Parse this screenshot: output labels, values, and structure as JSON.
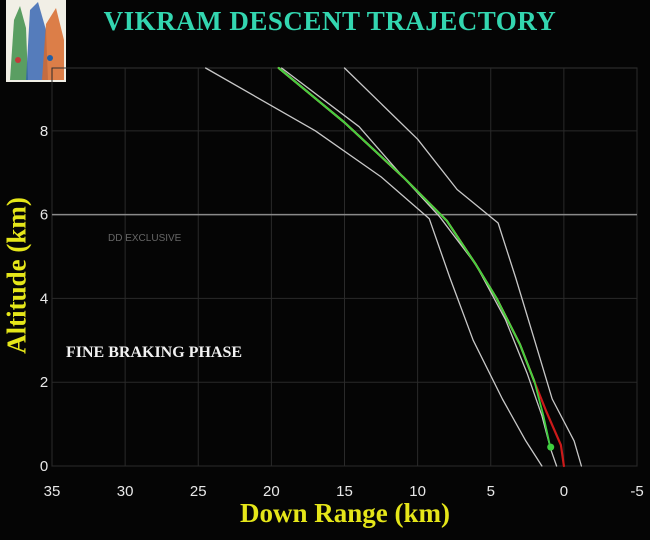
{
  "chart_data": {
    "type": "line",
    "title": "VIKRAM DESCENT TRAJECTORY",
    "xlabel": "Down Range (km)",
    "ylabel": "Altitude (km)",
    "annotation": "FINE BRAKING PHASE",
    "watermark": "DD EXCLUSIVE",
    "xlim": [
      35,
      -5
    ],
    "ylim": [
      0,
      9.5
    ],
    "xticks": [
      35,
      30,
      25,
      20,
      15,
      10,
      5,
      0,
      -5
    ],
    "yticks": [
      0,
      2,
      4,
      6,
      8
    ],
    "grid": true,
    "reference_line_y": 6,
    "colors": {
      "grid": "#2a2a2a",
      "reference": "#8a8a8a",
      "bounds": "#c8c8c8",
      "planned": "#e0c060",
      "actual": "#3fcf3f",
      "deviation": "#cc1a1a"
    },
    "series": [
      {
        "key": "upper_bound",
        "color_key": "bounds",
        "width": 1.3,
        "points": [
          [
            19.3,
            9.5
          ],
          [
            14,
            8.1
          ],
          [
            11,
            6.9
          ],
          [
            8.5,
            5.95
          ],
          [
            6,
            4.8
          ],
          [
            4,
            3.5
          ],
          [
            2.5,
            2.2
          ],
          [
            1.5,
            1.2
          ],
          [
            0.9,
            0.4
          ],
          [
            0.5,
            0
          ]
        ]
      },
      {
        "key": "nominal_outer",
        "color_key": "bounds",
        "width": 1.3,
        "points": [
          [
            24.5,
            9.5
          ],
          [
            17,
            8.0
          ],
          [
            12.5,
            6.9
          ],
          [
            9.2,
            5.9
          ],
          [
            7.8,
            4.5
          ],
          [
            6.2,
            3.0
          ],
          [
            4.2,
            1.6
          ],
          [
            2.6,
            0.6
          ],
          [
            1.5,
            0
          ]
        ]
      },
      {
        "key": "outer_right",
        "color_key": "bounds",
        "width": 1.3,
        "points": [
          [
            15,
            9.5
          ],
          [
            10,
            7.8
          ],
          [
            7.3,
            6.6
          ],
          [
            4.5,
            5.8
          ],
          [
            3.3,
            4.5
          ],
          [
            2.0,
            3.0
          ],
          [
            0.8,
            1.6
          ],
          [
            -0.7,
            0.6
          ],
          [
            -1.2,
            0
          ]
        ]
      },
      {
        "key": "planned",
        "color_key": "planned",
        "width": 2.2,
        "points": [
          [
            19.5,
            9.5
          ],
          [
            15,
            8.2
          ],
          [
            11,
            6.9
          ],
          [
            8,
            5.85
          ],
          [
            6,
            4.8
          ],
          [
            4.6,
            4.0
          ],
          [
            3,
            2.9
          ],
          [
            2.0,
            2.0
          ]
        ]
      },
      {
        "key": "deviation",
        "color_key": "deviation",
        "width": 2.2,
        "points": [
          [
            2.0,
            2.0
          ],
          [
            1.2,
            1.3
          ],
          [
            0.2,
            0.5
          ],
          [
            0.0,
            0.0
          ]
        ]
      },
      {
        "key": "actual",
        "color_key": "actual",
        "width": 1.8,
        "points": [
          [
            19.5,
            9.5
          ],
          [
            15,
            8.2
          ],
          [
            11,
            6.9
          ],
          [
            8,
            5.85
          ],
          [
            6,
            4.8
          ],
          [
            4.6,
            4.0
          ],
          [
            3,
            2.9
          ],
          [
            2.0,
            2.0
          ],
          [
            1.4,
            1.2
          ],
          [
            0.9,
            0.4
          ]
        ]
      }
    ],
    "markers": [
      {
        "x": 0.9,
        "y": 0.45,
        "color_key": "actual"
      }
    ]
  }
}
